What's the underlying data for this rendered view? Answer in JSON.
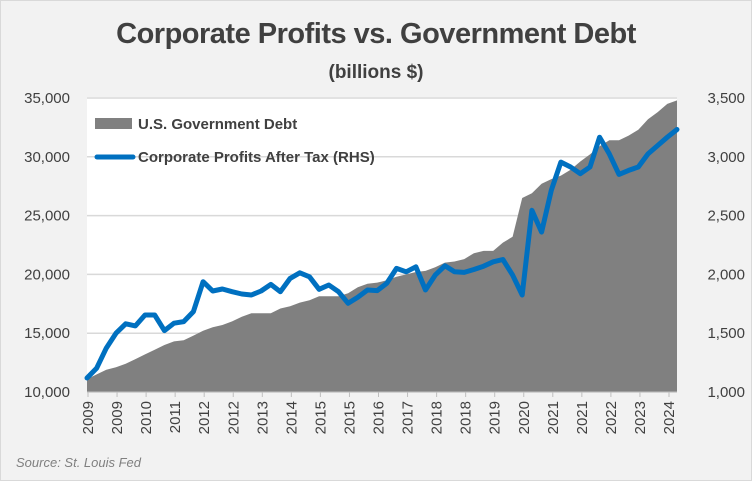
{
  "chart_data": {
    "type": "area+line",
    "title": "Corporate Profits vs. Government Debt",
    "subtitle": "(billions $)",
    "source": "Source: St. Louis Fed",
    "legend_placement": "top-left",
    "grid": true,
    "x_tick_labels": [
      "2009",
      "2009",
      "2010",
      "2011",
      "2012",
      "2012",
      "2013",
      "2014",
      "2015",
      "2015",
      "2016",
      "2017",
      "2018",
      "2018",
      "2019",
      "2020",
      "2021",
      "2021",
      "2022",
      "2023",
      "2024"
    ],
    "left_axis": {
      "ylim": [
        10000,
        35000
      ],
      "ticks": [
        "10,000",
        "15,000",
        "20,000",
        "25,000",
        "30,000",
        "35,000"
      ]
    },
    "right_axis": {
      "ylim": [
        1000,
        3500
      ],
      "ticks": [
        "1,000",
        "1,500",
        "2,000",
        "2,500",
        "3,000",
        "3,500"
      ]
    },
    "x_range": [
      "2009 Q1",
      "2024 Q2"
    ],
    "series": [
      {
        "name": "U.S. Government Debt",
        "type": "area",
        "axis": "left",
        "color": "#808080",
        "values": [
          11100,
          11500,
          11900,
          12100,
          12400,
          12800,
          13200,
          13600,
          14000,
          14300,
          14400,
          14800,
          15200,
          15500,
          15700,
          16000,
          16400,
          16700,
          16700,
          16700,
          17100,
          17300,
          17600,
          17800,
          18150,
          18150,
          18150,
          18400,
          18900,
          19200,
          19300,
          19500,
          19800,
          20000,
          20200,
          20300,
          20600,
          21000,
          21100,
          21300,
          21800,
          22000,
          22000,
          22700,
          23200,
          26500,
          26900,
          27700,
          28100,
          28400,
          28900,
          29600,
          30200,
          30900,
          31400,
          31400,
          31800,
          32300,
          33200,
          33800,
          34500,
          34800
        ]
      },
      {
        "name": "Corporate Profits After Tax (RHS)",
        "type": "line",
        "axis": "right",
        "color": "#0070c0",
        "values": [
          1119,
          1203,
          1373,
          1500,
          1580,
          1562,
          1655,
          1655,
          1522,
          1585,
          1599,
          1684,
          1938,
          1859,
          1876,
          1853,
          1833,
          1825,
          1859,
          1915,
          1853,
          1966,
          2014,
          1980,
          1873,
          1910,
          1853,
          1754,
          1805,
          1867,
          1862,
          1924,
          2051,
          2022,
          2065,
          1867,
          1994,
          2073,
          2022,
          2017,
          2042,
          2070,
          2107,
          2127,
          1994,
          1825,
          2545,
          2360,
          2715,
          2955,
          2913,
          2856,
          2913,
          3167,
          3025,
          2850,
          2884,
          2913,
          3025,
          3096,
          3167,
          3232
        ]
      }
    ]
  }
}
